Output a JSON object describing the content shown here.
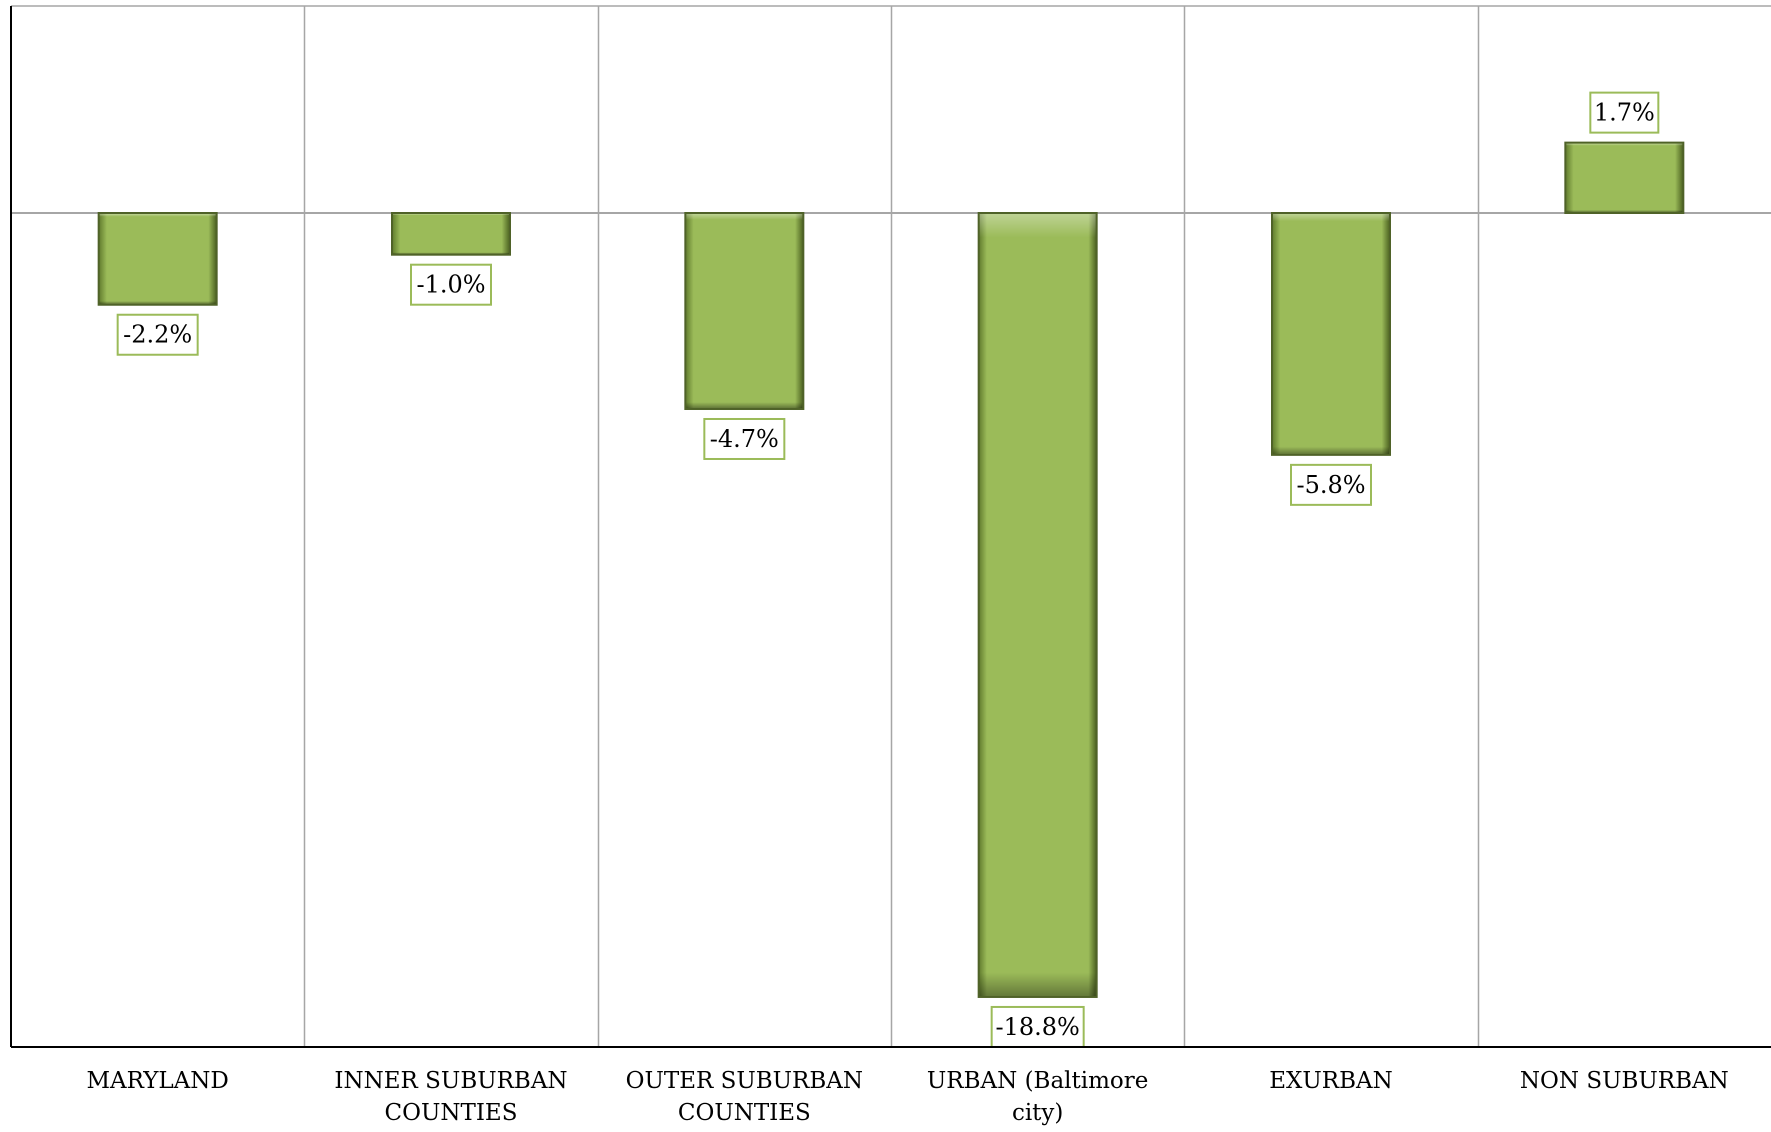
{
  "chart_data": {
    "type": "bar",
    "title": "",
    "xlabel": "",
    "ylabel": "",
    "categories": [
      "MARYLAND",
      "INNER SUBURBAN COUNTIES",
      "OUTER SUBURBAN COUNTIES",
      "URBAN (Baltimore city)",
      "EXURBAN",
      "NON SUBURBAN"
    ],
    "category_lines": [
      [
        "MARYLAND"
      ],
      [
        "INNER SUBURBAN",
        "COUNTIES"
      ],
      [
        "OUTER SUBURBAN",
        "COUNTIES"
      ],
      [
        "URBAN (Baltimore",
        "city)"
      ],
      [
        "EXURBAN"
      ],
      [
        "NON SUBURBAN"
      ]
    ],
    "values": [
      -2.2,
      -1.0,
      -4.7,
      -18.8,
      -5.8,
      1.7
    ],
    "data_labels": [
      "-2.2%",
      "-1.0%",
      "-4.7%",
      "-18.8%",
      "-5.8%",
      "1.7%"
    ],
    "ylim": [
      -20,
      5
    ],
    "grid": true,
    "legend": "none",
    "colors": {
      "bar_fill": "#9bbb59",
      "bar_edge": "#4f6228",
      "label_border": "#9bbb59",
      "grid": "#a6a6a6",
      "axis": "#000000",
      "text": "#000000"
    }
  }
}
